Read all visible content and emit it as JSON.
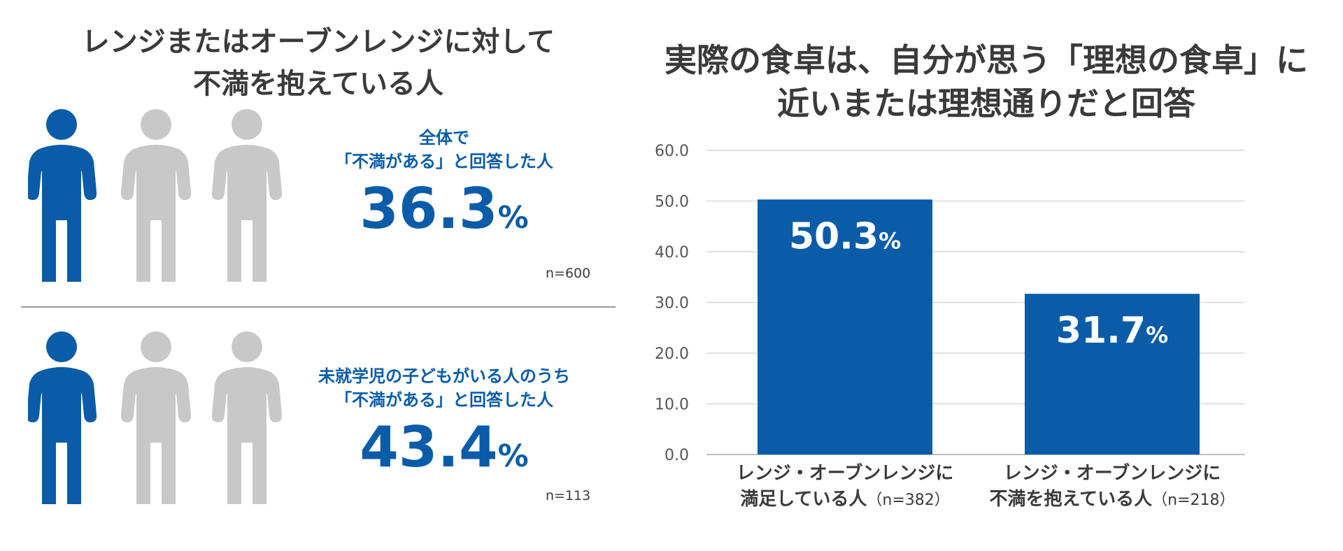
{
  "left": {
    "title_line1": "レンジまたはオーブンレンジに対して",
    "title_line2": "不満を抱えている人",
    "stats": [
      {
        "label_line1": "全体で",
        "label_line2": "「不満がある」と回答した人",
        "value": "36.3",
        "unit": "%",
        "n": "n=600",
        "fraction": 0.363
      },
      {
        "label_line1": "未就学児の子どもがいる人のうち",
        "label_line2": "「不満がある」と回答した人",
        "value": "43.4",
        "unit": "%",
        "n": "n=113",
        "fraction": 0.434
      }
    ]
  },
  "right": {
    "title_line1": "実際の食卓は、自分が思う「理想の食卓」に",
    "title_line2": "近いまたは理想通りだと回答"
  },
  "chart_data": {
    "type": "bar",
    "title": "実際の食卓は、自分が思う「理想の食卓」に近いまたは理想通りだと回答",
    "categories": [
      {
        "line1": "レンジ・オーブンレンジに",
        "line2": "満足している人",
        "n": "（n=382）"
      },
      {
        "line1": "レンジ・オーブンレンジに",
        "line2": "不満を抱えている人",
        "n": "（n=218）"
      }
    ],
    "values": [
      50.3,
      31.7
    ],
    "data_labels": [
      "50.3",
      "31.7"
    ],
    "unit": "%",
    "ylim": [
      0,
      60
    ],
    "yticks": [
      "0.0",
      "10.0",
      "20.0",
      "30.0",
      "40.0",
      "50.0",
      "60.0"
    ],
    "grid": true,
    "xlabel": "",
    "ylabel": ""
  },
  "colors": {
    "accent": "#0a5ca8",
    "inactive": "#c8c8c8",
    "text": "#3a3a3a",
    "grid": "#d9d9d9"
  }
}
